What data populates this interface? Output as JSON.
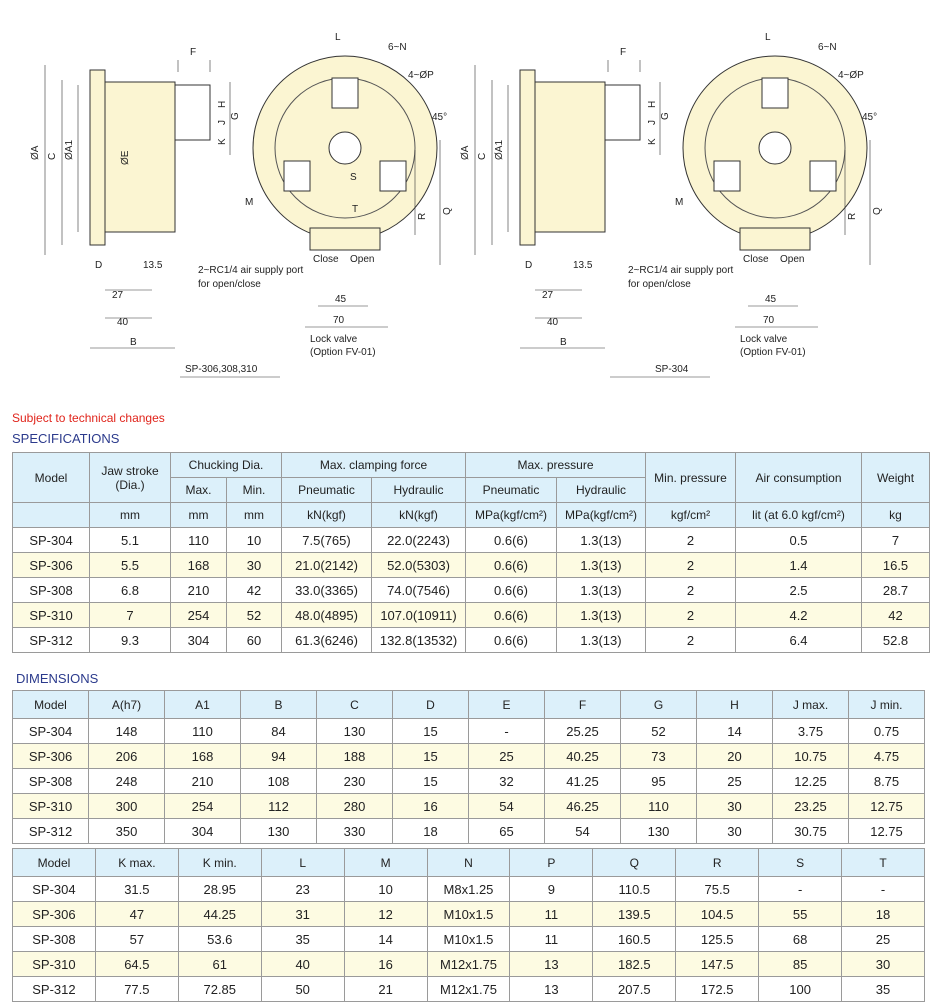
{
  "drawings": {
    "left": {
      "caption": "SP-306,308,310",
      "labels": {
        "F": "F",
        "A": "ØA",
        "A1": "ØA1",
        "C": "C",
        "E": "ØE",
        "G": "G",
        "H": "H",
        "J": "J",
        "K": "K",
        "D": "D",
        "d135": "13.5",
        "d27": "27",
        "d40": "40",
        "B": "B",
        "L": "L",
        "N": "6~N",
        "P": "4~ØP",
        "ang": "45°",
        "M": "M",
        "S": "S",
        "T": "T",
        "R": "R",
        "Q": "Q",
        "close": "Close",
        "open": "Open",
        "air": "2~RC1/4 air supply port",
        "air2": "for open/close",
        "d45": "45",
        "d70": "70",
        "lock": "Lock valve",
        "lock2": "(Option FV-01)"
      }
    },
    "right": {
      "caption": "SP-304",
      "labels": {
        "F": "F",
        "A": "ØA",
        "A1": "ØA1",
        "C": "C",
        "G": "G",
        "H": "H",
        "J": "J",
        "K": "K",
        "D": "D",
        "d135": "13.5",
        "d27": "27",
        "d40": "40",
        "B": "B",
        "L": "L",
        "N": "6~N",
        "P": "4~ØP",
        "ang": "45°",
        "M": "M",
        "R": "R",
        "Q": "Q",
        "close": "Close",
        "open": "Open",
        "air": "2~RC1/4 air supply port",
        "air2": "for open/close",
        "d45": "45",
        "d70": "70",
        "lock": "Lock valve",
        "lock2": "(Option FV-01)"
      }
    }
  },
  "note": "Subject to technical changes",
  "specs": {
    "title": "SPECIFICATIONS",
    "head": {
      "model": "Model",
      "jaw": "Jaw stroke (Dia.)",
      "chuck": "Chucking Dia.",
      "max": "Max.",
      "min": "Min.",
      "clamp": "Max. clamping force",
      "pneu": "Pneumatic",
      "hyd": "Hydraulic",
      "press": "Max. pressure",
      "pneu2": "Pneumatic",
      "hyd2": "Hydraulic",
      "minp": "Min. pressure",
      "air": "Air consumption",
      "weight": "Weight"
    },
    "units": [
      "mm",
      "mm",
      "mm",
      "kN(kgf)",
      "kN(kgf)",
      "MPa(kgf/cm²)",
      "MPa(kgf/cm²)",
      "kgf/cm²",
      "lit (at 6.0 kgf/cm²)",
      "kg"
    ],
    "rows": [
      [
        "SP-304",
        "5.1",
        "110",
        "10",
        "7.5(765)",
        "22.0(2243)",
        "0.6(6)",
        "1.3(13)",
        "2",
        "0.5",
        "7"
      ],
      [
        "SP-306",
        "5.5",
        "168",
        "30",
        "21.0(2142)",
        "52.0(5303)",
        "0.6(6)",
        "1.3(13)",
        "2",
        "1.4",
        "16.5"
      ],
      [
        "SP-308",
        "6.8",
        "210",
        "42",
        "33.0(3365)",
        "74.0(7546)",
        "0.6(6)",
        "1.3(13)",
        "2",
        "2.5",
        "28.7"
      ],
      [
        "SP-310",
        "7",
        "254",
        "52",
        "48.0(4895)",
        "107.0(10911)",
        "0.6(6)",
        "1.3(13)",
        "2",
        "4.2",
        "42"
      ],
      [
        "SP-312",
        "9.3",
        "304",
        "60",
        "61.3(6246)",
        "132.8(13532)",
        "0.6(6)",
        "1.3(13)",
        "2",
        "6.4",
        "52.8"
      ]
    ]
  },
  "dims": {
    "title": "DIMENSIONS",
    "t1": {
      "head": [
        "Model",
        "A(h7)",
        "A1",
        "B",
        "C",
        "D",
        "E",
        "F",
        "G",
        "H",
        "J max.",
        "J min."
      ],
      "rows": [
        [
          "SP-304",
          "148",
          "110",
          "84",
          "130",
          "15",
          "-",
          "25.25",
          "52",
          "14",
          "3.75",
          "0.75"
        ],
        [
          "SP-306",
          "206",
          "168",
          "94",
          "188",
          "15",
          "25",
          "40.25",
          "73",
          "20",
          "10.75",
          "4.75"
        ],
        [
          "SP-308",
          "248",
          "210",
          "108",
          "230",
          "15",
          "32",
          "41.25",
          "95",
          "25",
          "12.25",
          "8.75"
        ],
        [
          "SP-310",
          "300",
          "254",
          "112",
          "280",
          "16",
          "54",
          "46.25",
          "110",
          "30",
          "23.25",
          "12.75"
        ],
        [
          "SP-312",
          "350",
          "304",
          "130",
          "330",
          "18",
          "65",
          "54",
          "130",
          "30",
          "30.75",
          "12.75"
        ]
      ]
    },
    "t2": {
      "head": [
        "Model",
        "K max.",
        "K min.",
        "L",
        "M",
        "N",
        "P",
        "Q",
        "R",
        "S",
        "T"
      ],
      "rows": [
        [
          "SP-304",
          "31.5",
          "28.95",
          "23",
          "10",
          "M8x1.25",
          "9",
          "110.5",
          "75.5",
          "-",
          "-"
        ],
        [
          "SP-306",
          "47",
          "44.25",
          "31",
          "12",
          "M10x1.5",
          "11",
          "139.5",
          "104.5",
          "55",
          "18"
        ],
        [
          "SP-308",
          "57",
          "53.6",
          "35",
          "14",
          "M10x1.5",
          "11",
          "160.5",
          "125.5",
          "68",
          "25"
        ],
        [
          "SP-310",
          "64.5",
          "61",
          "40",
          "16",
          "M12x1.75",
          "13",
          "182.5",
          "147.5",
          "85",
          "30"
        ],
        [
          "SP-312",
          "77.5",
          "72.85",
          "50",
          "21",
          "M12x1.75",
          "13",
          "207.5",
          "172.5",
          "100",
          "35"
        ]
      ]
    }
  }
}
